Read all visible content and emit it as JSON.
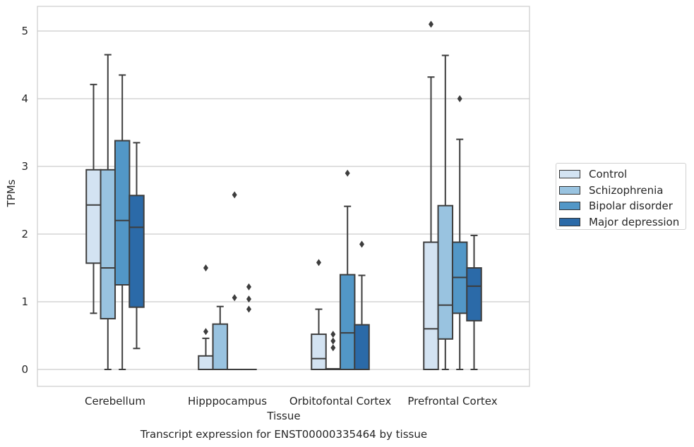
{
  "chart_data": {
    "type": "boxplot",
    "title": "Transcript expression for ENST00000335464 by tissue",
    "xlabel": "Tissue",
    "ylabel": "TPMs",
    "ylim": [
      -0.25,
      5.35
    ],
    "yticks": [
      "0",
      "1",
      "2",
      "3",
      "4",
      "5"
    ],
    "grid": true,
    "legend_position": "right",
    "categories": [
      "Cerebellum",
      "Hipppocampus",
      "Orbitofontal Cortex",
      "Prefrontal Cortex"
    ],
    "series": [
      {
        "name": "Control",
        "color": "#d3e3f2",
        "boxes": [
          {
            "min": 0.83,
            "q1": 1.57,
            "median": 2.43,
            "q3": 2.95,
            "max": 4.21,
            "outliers": []
          },
          {
            "min": 0.0,
            "q1": 0.0,
            "median": 0.0,
            "q3": 0.2,
            "max": 0.46,
            "outliers": [
              0.56,
              1.5
            ]
          },
          {
            "min": 0.0,
            "q1": 0.0,
            "median": 0.16,
            "q3": 0.52,
            "max": 0.89,
            "outliers": [
              1.58
            ]
          },
          {
            "min": 0.0,
            "q1": 0.0,
            "median": 0.6,
            "q3": 1.88,
            "max": 4.32,
            "outliers": [
              5.1
            ]
          }
        ]
      },
      {
        "name": "Schizophrenia",
        "color": "#99c3e0",
        "boxes": [
          {
            "min": 0.0,
            "q1": 0.75,
            "median": 1.5,
            "q3": 2.95,
            "max": 4.65,
            "outliers": []
          },
          {
            "min": 0.0,
            "q1": 0.0,
            "median": 0.0,
            "q3": 0.67,
            "max": 0.93,
            "outliers": []
          },
          {
            "min": 0.0,
            "q1": 0.0,
            "median": 0.0,
            "q3": 0.01,
            "max": 0.01,
            "outliers": [
              0.32,
              0.42,
              0.52
            ]
          },
          {
            "min": 0.0,
            "q1": 0.45,
            "median": 0.95,
            "q3": 2.42,
            "max": 4.64,
            "outliers": []
          }
        ]
      },
      {
        "name": "Bipolar disorder",
        "color": "#5297c7",
        "boxes": [
          {
            "min": 0.0,
            "q1": 1.25,
            "median": 2.2,
            "q3": 3.38,
            "max": 4.35,
            "outliers": []
          },
          {
            "min": 0.0,
            "q1": 0.0,
            "median": 0.0,
            "q3": 0.0,
            "max": 0.0,
            "outliers": [
              1.06,
              2.58
            ]
          },
          {
            "min": 0.0,
            "q1": 0.0,
            "median": 0.54,
            "q3": 1.4,
            "max": 2.41,
            "outliers": [
              2.9
            ]
          },
          {
            "min": 0.0,
            "q1": 0.83,
            "median": 1.36,
            "q3": 1.88,
            "max": 3.4,
            "outliers": [
              4.0
            ]
          }
        ]
      },
      {
        "name": "Major depression",
        "color": "#2b6aa8",
        "boxes": [
          {
            "min": 0.31,
            "q1": 0.92,
            "median": 2.1,
            "q3": 2.57,
            "max": 3.35,
            "outliers": []
          },
          {
            "min": 0.0,
            "q1": 0.0,
            "median": 0.0,
            "q3": 0.0,
            "max": 0.0,
            "outliers": [
              0.89,
              1.04,
              1.22
            ]
          },
          {
            "min": 0.0,
            "q1": 0.0,
            "median": 0.0,
            "q3": 0.66,
            "max": 1.39,
            "outliers": [
              1.85
            ]
          },
          {
            "min": 0.0,
            "q1": 0.72,
            "median": 1.23,
            "q3": 1.5,
            "max": 1.98,
            "outliers": []
          }
        ]
      }
    ]
  }
}
